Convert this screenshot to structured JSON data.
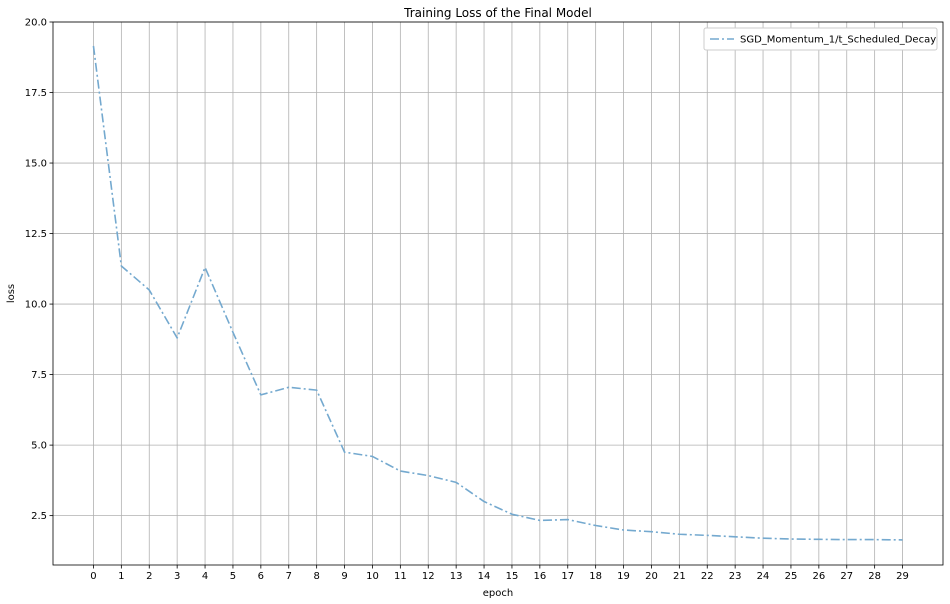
{
  "chart_data": {
    "type": "line",
    "title": "Training Loss of the Final Model",
    "xlabel": "epoch",
    "ylabel": "loss",
    "x": [
      0,
      1,
      2,
      3,
      4,
      5,
      6,
      7,
      8,
      9,
      10,
      11,
      12,
      13,
      14,
      15,
      16,
      17,
      18,
      19,
      20,
      21,
      22,
      23,
      24,
      25,
      26,
      27,
      28,
      29
    ],
    "xlim": [
      -1.45,
      30.45
    ],
    "ylim": [
      0.75,
      20.0
    ],
    "yticks": [
      2.5,
      5.0,
      7.5,
      10.0,
      12.5,
      15.0,
      17.5,
      20.0
    ],
    "ytick_labels": [
      "2.5",
      "5.0",
      "7.5",
      "10.0",
      "12.5",
      "15.0",
      "17.5",
      "20.0"
    ],
    "grid": true,
    "legend_position": "top-right",
    "series": [
      {
        "name": "SGD_Momentum_1/t_Scheduled_Decay",
        "color": "#74a9cf",
        "line_style": "dash-dot",
        "values": [
          19.15,
          11.35,
          10.5,
          8.8,
          11.3,
          9.0,
          6.78,
          7.05,
          6.95,
          4.75,
          4.6,
          4.08,
          3.92,
          3.68,
          3.0,
          2.55,
          2.33,
          2.36,
          2.15,
          1.99,
          1.93,
          1.84,
          1.8,
          1.75,
          1.7,
          1.67,
          1.66,
          1.65,
          1.65,
          1.64
        ]
      }
    ]
  }
}
